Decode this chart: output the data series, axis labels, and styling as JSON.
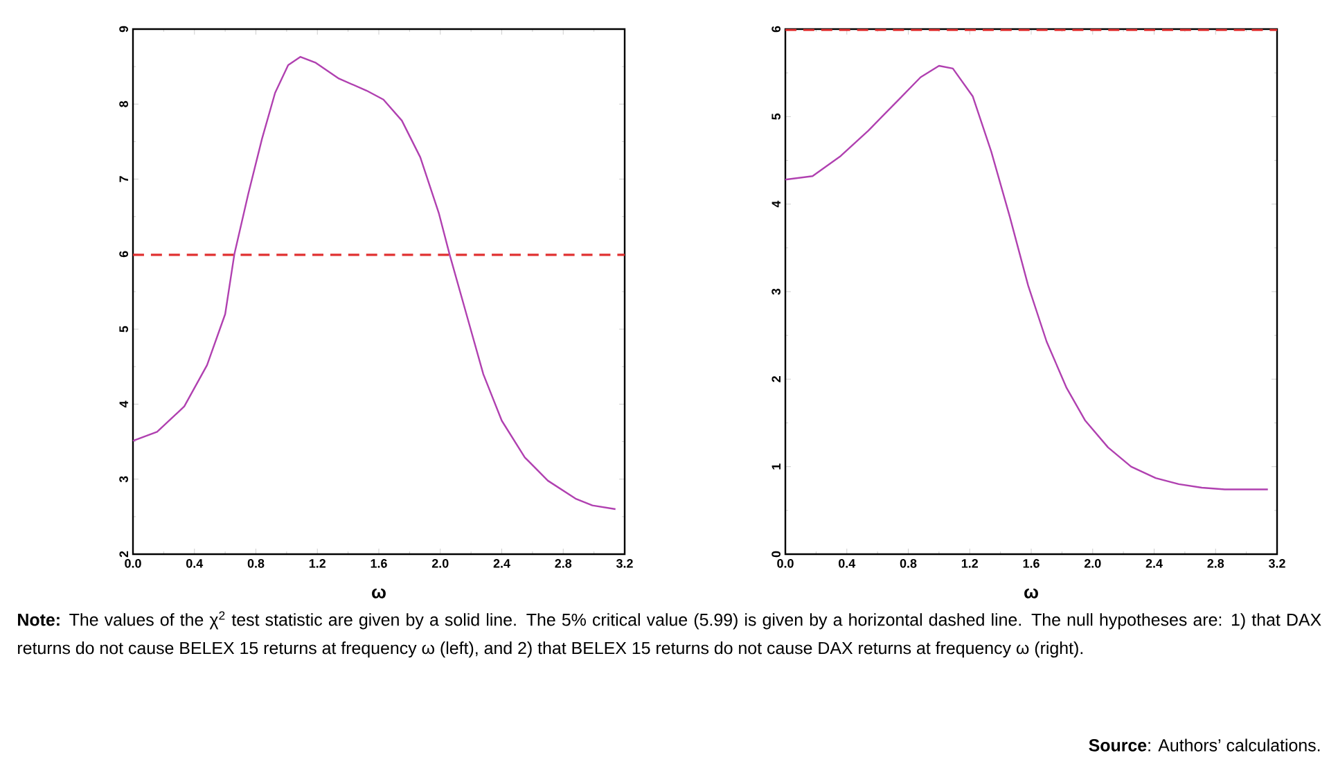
{
  "chart_data": [
    {
      "type": "line",
      "xlabel": "ω",
      "color": "#b040b0",
      "x": [
        0,
        0.157,
        0.334,
        0.482,
        0.6,
        0.66,
        0.75,
        0.84,
        0.925,
        1.01,
        1.09,
        1.19,
        1.34,
        1.52,
        1.63,
        1.75,
        1.87,
        1.99,
        2.06,
        2.17,
        2.28,
        2.4,
        2.55,
        2.7,
        2.88,
        2.99,
        3.14
      ],
      "values": [
        3.51,
        3.63,
        3.97,
        4.52,
        5.2,
        6.0,
        6.8,
        7.54,
        8.15,
        8.52,
        8.63,
        8.55,
        8.34,
        8.18,
        8.06,
        7.78,
        7.29,
        6.55,
        6.0,
        5.2,
        4.4,
        3.78,
        3.29,
        2.98,
        2.74,
        2.65,
        2.6
      ],
      "xlim": [
        0,
        3.2
      ],
      "ylim": [
        2,
        9
      ],
      "xticks": [
        {
          "value": 0,
          "label": "0.0"
        },
        {
          "value": 0.4,
          "label": "0.4"
        },
        {
          "value": 0.8,
          "label": "0.8"
        },
        {
          "value": 1.2,
          "label": "1.2"
        },
        {
          "value": 1.6,
          "label": "1.6"
        },
        {
          "value": 2.0,
          "label": "2.0"
        },
        {
          "value": 2.4,
          "label": "2.4"
        },
        {
          "value": 2.8,
          "label": "2.8"
        },
        {
          "value": 3.2,
          "label": "3.2"
        }
      ],
      "yticks": [
        2,
        3,
        4,
        5,
        6,
        7,
        8,
        9
      ],
      "ref_lines": [
        {
          "axis": "y",
          "value": 5.99,
          "color": "#e03030",
          "line_style": "dashed"
        }
      ]
    },
    {
      "type": "line",
      "xlabel": "ω",
      "color": "#b040b0",
      "x": [
        0,
        0.177,
        0.36,
        0.54,
        0.73,
        0.88,
        1.0,
        1.09,
        1.22,
        1.34,
        1.46,
        1.58,
        1.7,
        1.83,
        1.95,
        2.1,
        2.25,
        2.41,
        2.56,
        2.71,
        2.86,
        3.14
      ],
      "values": [
        4.28,
        4.32,
        4.55,
        4.84,
        5.18,
        5.45,
        5.58,
        5.55,
        5.23,
        4.6,
        3.86,
        3.07,
        2.43,
        1.9,
        1.53,
        1.22,
        1.0,
        0.87,
        0.8,
        0.76,
        0.74,
        0.74
      ],
      "xlim": [
        0,
        3.2
      ],
      "ylim": [
        0,
        6
      ],
      "xticks": [
        {
          "value": 0,
          "label": "0.0"
        },
        {
          "value": 0.4,
          "label": "0.4"
        },
        {
          "value": 0.8,
          "label": "0.8"
        },
        {
          "value": 1.2,
          "label": "1.2"
        },
        {
          "value": 1.6,
          "label": "1.6"
        },
        {
          "value": 2.0,
          "label": "2.0"
        },
        {
          "value": 2.4,
          "label": "2.4"
        },
        {
          "value": 2.8,
          "label": "2.8"
        },
        {
          "value": 3.2,
          "label": "3.2"
        }
      ],
      "yticks": [
        0,
        1,
        2,
        3,
        4,
        5,
        6
      ],
      "ref_lines": [
        {
          "axis": "y",
          "value": 5.99,
          "color": "#e03030",
          "line_style": "dashed"
        }
      ],
      "annotations": [
        "**Note:** The values of the χ$^{2}$ test statistic are given by a solid line. The 5% critical value (5.99) is given by a horizontal dashed line. The null hypotheses are: 1) that DAX returns do not cause BELEX 15 returns at frequency ω (left), and 2) that BELEX 15 returns do not cause DAX returns at frequency ω (right).",
        "**Source**: Authors’ calculations."
      ]
    }
  ]
}
